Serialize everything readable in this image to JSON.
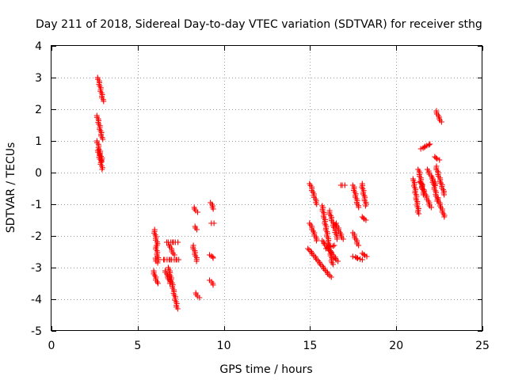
{
  "chart_data": {
    "type": "scatter",
    "title": "Day 211 of 2018, Sidereal Day-to-day VTEC variation (SDTVAR) for receiver sthg",
    "xlabel": "GPS time / hours",
    "ylabel": "SDTVAR / TECUs",
    "xlim": [
      0,
      25
    ],
    "ylim": [
      -5,
      4
    ],
    "xticks": [
      0,
      5,
      10,
      15,
      20,
      25
    ],
    "yticks": [
      -5,
      -4,
      -3,
      -2,
      -1,
      0,
      1,
      2,
      3,
      4
    ],
    "xtick_labels": [
      "0",
      "5",
      "10",
      "15",
      "20",
      "25"
    ],
    "ytick_labels": [
      "-5",
      "-4",
      "-3",
      "-2",
      "-1",
      "0",
      "1",
      "2",
      "3",
      "4"
    ],
    "grid": true,
    "marker": "+",
    "color": "#ff0000",
    "segments": [
      {
        "x": [
          2.7,
          3.0
        ],
        "y": [
          3.0,
          2.25
        ]
      },
      {
        "x": [
          2.65,
          2.95
        ],
        "y": [
          1.8,
          1.05
        ]
      },
      {
        "x": [
          2.65,
          2.95
        ],
        "y": [
          1.0,
          0.35
        ]
      },
      {
        "x": [
          2.7,
          2.95
        ],
        "y": [
          0.7,
          0.1
        ]
      },
      {
        "x": [
          5.95,
          6.15
        ],
        "y": [
          -1.8,
          -2.3
        ]
      },
      {
        "x": [
          6.05,
          6.2
        ],
        "y": [
          -2.3,
          -2.8
        ]
      },
      {
        "x": [
          5.9,
          6.15
        ],
        "y": [
          -3.1,
          -3.5
        ]
      },
      {
        "x": [
          6.0,
          6.15
        ],
        "y": [
          -2.7,
          -2.85
        ]
      },
      {
        "x": [
          6.5,
          7.4
        ],
        "y": [
          -2.75,
          -2.75
        ]
      },
      {
        "x": [
          6.7,
          7.3
        ],
        "y": [
          -2.2,
          -2.2
        ]
      },
      {
        "x": [
          6.8,
          7.3
        ],
        "y": [
          -3.0,
          -4.3
        ]
      },
      {
        "x": [
          6.6,
          6.9
        ],
        "y": [
          -3.1,
          -3.5
        ]
      },
      {
        "x": [
          6.85,
          7.1
        ],
        "y": [
          -2.3,
          -2.6
        ]
      },
      {
        "x": [
          8.25,
          8.45
        ],
        "y": [
          -1.1,
          -1.25
        ]
      },
      {
        "x": [
          8.3,
          8.45
        ],
        "y": [
          -1.7,
          -1.8
        ]
      },
      {
        "x": [
          8.2,
          8.45
        ],
        "y": [
          -2.3,
          -2.8
        ]
      },
      {
        "x": [
          8.35,
          8.55
        ],
        "y": [
          -3.8,
          -3.95
        ]
      },
      {
        "x": [
          9.25,
          9.4
        ],
        "y": [
          -0.95,
          -1.15
        ]
      },
      {
        "x": [
          9.3,
          9.4
        ],
        "y": [
          -1.6,
          -1.6
        ]
      },
      {
        "x": [
          9.2,
          9.4
        ],
        "y": [
          -2.6,
          -2.7
        ]
      },
      {
        "x": [
          9.2,
          9.4
        ],
        "y": [
          -3.4,
          -3.55
        ]
      },
      {
        "x": [
          15.0,
          15.4
        ],
        "y": [
          -0.35,
          -1.0
        ]
      },
      {
        "x": [
          15.0,
          15.4
        ],
        "y": [
          -1.6,
          -2.15
        ]
      },
      {
        "x": [
          14.9,
          16.2
        ],
        "y": [
          -2.4,
          -3.3
        ]
      },
      {
        "x": [
          15.7,
          16.3
        ],
        "y": [
          -1.05,
          -2.9
        ]
      },
      {
        "x": [
          15.9,
          16.4
        ],
        "y": [
          -2.4,
          -2.3
        ]
      },
      {
        "x": [
          15.7,
          16.6
        ],
        "y": [
          -2.15,
          -2.8
        ]
      },
      {
        "x": [
          16.1,
          16.6
        ],
        "y": [
          -1.2,
          -2.1
        ]
      },
      {
        "x": [
          16.5,
          16.9
        ],
        "y": [
          -1.6,
          -2.1
        ]
      },
      {
        "x": [
          16.8,
          17.0
        ],
        "y": [
          -0.4,
          -0.4
        ]
      },
      {
        "x": [
          17.5,
          17.8
        ],
        "y": [
          -0.4,
          -1.1
        ]
      },
      {
        "x": [
          17.5,
          17.8
        ],
        "y": [
          -1.9,
          -2.3
        ]
      },
      {
        "x": [
          17.5,
          18.0
        ],
        "y": [
          -2.65,
          -2.75
        ]
      },
      {
        "x": [
          18.0,
          18.25
        ],
        "y": [
          -0.35,
          -1.05
        ]
      },
      {
        "x": [
          18.0,
          18.25
        ],
        "y": [
          -1.4,
          -1.5
        ]
      },
      {
        "x": [
          18.0,
          18.3
        ],
        "y": [
          -2.55,
          -2.65
        ]
      },
      {
        "x": [
          21.0,
          21.3
        ],
        "y": [
          -0.2,
          -1.3
        ]
      },
      {
        "x": [
          21.3,
          21.6
        ],
        "y": [
          0.1,
          -0.7
        ]
      },
      {
        "x": [
          21.45,
          21.95
        ],
        "y": [
          0.75,
          0.9
        ]
      },
      {
        "x": [
          21.4,
          22.0
        ],
        "y": [
          -0.3,
          -1.1
        ]
      },
      {
        "x": [
          21.8,
          22.3
        ],
        "y": [
          0.1,
          -0.4
        ]
      },
      {
        "x": [
          22.3,
          22.6
        ],
        "y": [
          1.95,
          1.6
        ]
      },
      {
        "x": [
          22.2,
          22.5
        ],
        "y": [
          0.5,
          0.4
        ]
      },
      {
        "x": [
          22.3,
          22.8
        ],
        "y": [
          0.2,
          -0.7
        ]
      },
      {
        "x": [
          22.4,
          22.8
        ],
        "y": [
          -0.8,
          -1.4
        ]
      },
      {
        "x": [
          22.1,
          22.4
        ],
        "y": [
          -0.2,
          -0.9
        ]
      }
    ]
  }
}
